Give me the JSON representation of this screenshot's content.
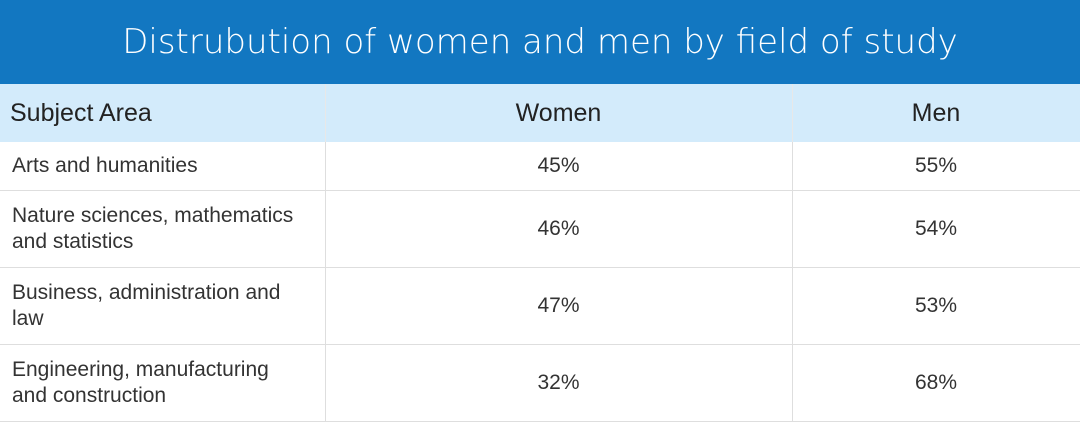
{
  "title": "Distrubution of women and men by field of study",
  "table": {
    "columns": [
      "Subject Area",
      "Women",
      "Men"
    ],
    "rows": [
      [
        "Arts and humanities",
        "45%",
        "55%"
      ],
      [
        "Nature sciences, mathematics and statistics",
        "46%",
        "54%"
      ],
      [
        "Business, administration and law",
        "47%",
        "53%"
      ],
      [
        "Engineering, manufacturing and construction",
        "32%",
        "68%"
      ]
    ]
  }
}
